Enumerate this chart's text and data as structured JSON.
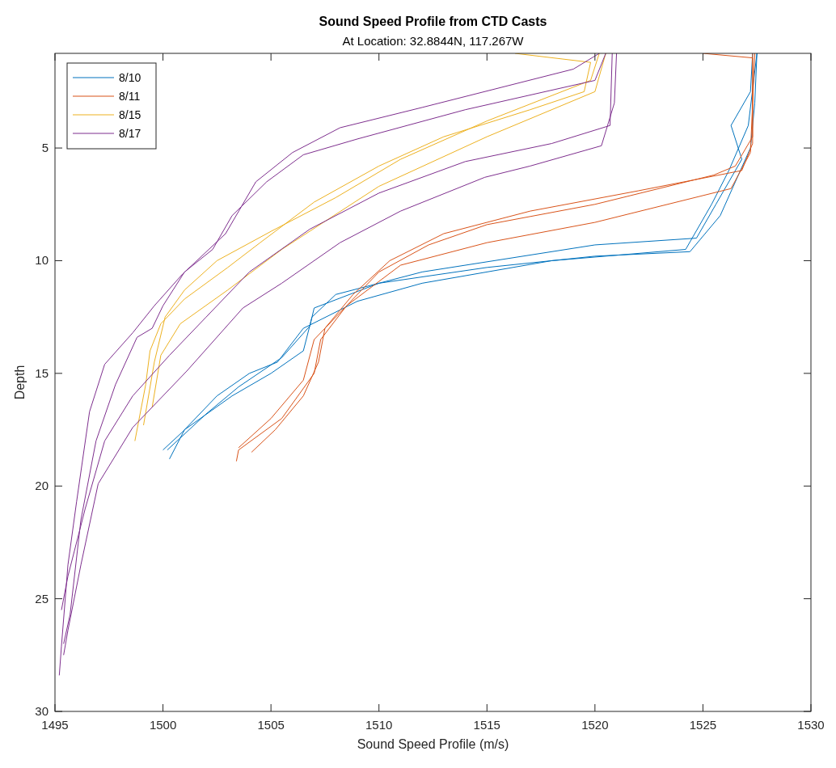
{
  "chart_data": {
    "type": "line",
    "title": "Sound Speed Profile from CTD Casts",
    "subtitle": "At Location: 32.8844N, 117.267W",
    "xlabel": "Sound Speed Profile (m/s)",
    "ylabel": "Depth",
    "xlim": [
      1495,
      1530
    ],
    "xticks": [
      1495,
      1500,
      1505,
      1510,
      1515,
      1520,
      1525,
      1530
    ],
    "ylim": [
      30,
      0.8
    ],
    "yticks": [
      5,
      10,
      15,
      20,
      25,
      30
    ],
    "grid": false,
    "legend": "top left",
    "line_style": "solid",
    "marker": "none",
    "series": [
      {
        "name": "8/10",
        "color": "#0072bd",
        "x": [
          1527.5,
          1527.4,
          1527.2,
          1526.5,
          1525.8,
          1524.4,
          1520,
          1515,
          1510,
          1507,
          1506.8,
          1505.5,
          1503.5,
          1502,
          1500.2
        ],
        "values": [
          0.8,
          3,
          5,
          6.5,
          8,
          9.6,
          9.8,
          10.3,
          11,
          12.1,
          12.9,
          14.3,
          15.6,
          16.8,
          18.4
        ]
      },
      {
        "color": "#0072bd",
        "x": [
          1527.3,
          1527.2,
          1526.3,
          1526.8,
          1525.6,
          1524.7,
          1520,
          1512,
          1508,
          1506.9,
          1506.5,
          1505,
          1503.2,
          1501,
          1500.3
        ],
        "values": [
          0.8,
          2.5,
          4,
          5.5,
          7.5,
          9,
          9.3,
          10.5,
          11.5,
          12.5,
          14,
          15,
          16,
          17.5,
          18.8
        ]
      },
      {
        "color": "#0072bd",
        "x": [
          1527.5,
          1527.1,
          1526.2,
          1525.4,
          1524.2,
          1518,
          1512,
          1509,
          1506.5,
          1505.3,
          1504,
          1502.5,
          1500.9,
          1500
        ],
        "values": [
          0.8,
          4,
          6,
          7.5,
          9.5,
          10,
          11,
          11.8,
          13,
          14.5,
          15,
          16,
          17.6,
          18.4
        ]
      },
      {
        "name": "8/11",
        "color": "#d95319",
        "x": [
          1525,
          1527.3,
          1527.3,
          1526.5,
          1525.5,
          1520,
          1515,
          1512.3,
          1510,
          1508.5,
          1507.3,
          1507,
          1505.5,
          1503.5,
          1503.4
        ],
        "values": [
          0.8,
          1,
          4.5,
          5.8,
          6.2,
          7.5,
          8.4,
          9.3,
          10.5,
          12,
          13.5,
          15,
          17,
          18.4,
          18.9
        ]
      },
      {
        "color": "#d95319",
        "x": [
          1527.3,
          1527.3,
          1526.8,
          1522,
          1517,
          1513,
          1510.5,
          1508.8,
          1507.5,
          1507.2,
          1506.5,
          1505.2,
          1504.1
        ],
        "values": [
          0.8,
          4.8,
          6,
          6.9,
          7.8,
          8.8,
          10,
          11.5,
          13,
          14.5,
          16,
          17.5,
          18.5
        ]
      },
      {
        "color": "#d95319",
        "x": [
          1527.4,
          1527.2,
          1526.3,
          1520,
          1515,
          1511,
          1508.5,
          1507,
          1506.5,
          1505,
          1503.5
        ],
        "values": [
          0.8,
          5.2,
          6.8,
          8.3,
          9.2,
          10.2,
          12,
          13.5,
          15.3,
          17,
          18.3
        ]
      },
      {
        "name": "8/15",
        "color": "#edb120",
        "x": [
          1516.3,
          1519.8,
          1519.5,
          1517,
          1513,
          1510,
          1507,
          1504.5,
          1503,
          1501,
          1499.9,
          1499.4,
          1499.2,
          1498.7
        ],
        "values": [
          0.8,
          1.2,
          2.5,
          3.3,
          4.5,
          5.8,
          7.4,
          9.2,
          10.3,
          11.7,
          12.8,
          14,
          15.5,
          18
        ]
      },
      {
        "color": "#edb120",
        "x": [
          1520.2,
          1519.8,
          1515,
          1511,
          1508,
          1505,
          1502.5,
          1501,
          1500.1,
          1499.6,
          1499.1
        ],
        "values": [
          0.8,
          2,
          3.8,
          5.5,
          7.2,
          8.7,
          10,
          11.3,
          12.5,
          14.5,
          17.3
        ]
      },
      {
        "color": "#edb120",
        "x": [
          1520.5,
          1520,
          1515,
          1510,
          1505.5,
          1503,
          1500.8,
          1499.9,
          1499.5
        ],
        "values": [
          0.8,
          2.5,
          4.5,
          6.7,
          9.5,
          11.3,
          12.8,
          14.2,
          16.5
        ]
      },
      {
        "name": "8/17",
        "color": "#7e2f8e",
        "x": [
          1520.2,
          1519,
          1512,
          1508.2,
          1506,
          1504.3,
          1502.9,
          1500.9,
          1499.6,
          1498.6,
          1497.3,
          1496.6,
          1496,
          1495.6,
          1495.3,
          1495.2
        ],
        "values": [
          0.8,
          1.5,
          3.2,
          4.1,
          5.2,
          6.5,
          8.8,
          10.6,
          12,
          13.2,
          14.6,
          16.7,
          20.7,
          23.5,
          27.1,
          28.4
        ]
      },
      {
        "color": "#7e2f8e",
        "x": [
          1520.5,
          1520,
          1514,
          1509,
          1506.5,
          1504.8,
          1503.2,
          1502.3,
          1501,
          1500,
          1499.5,
          1498.8,
          1497.8,
          1496.9,
          1496.2,
          1495.7,
          1495.4
        ],
        "values": [
          0.8,
          2,
          3.3,
          4.6,
          5.3,
          6.5,
          8,
          9.5,
          10.5,
          12,
          13,
          13.4,
          15.5,
          18,
          21.5,
          25.7,
          27
        ]
      },
      {
        "color": "#7e2f8e",
        "x": [
          1521,
          1520.9,
          1520.3,
          1517,
          1514.9,
          1511,
          1508.2,
          1505.5,
          1503.7,
          1501.1,
          1498.6,
          1497,
          1496.2,
          1495.6,
          1495.4
        ],
        "values": [
          0.8,
          3,
          4.9,
          5.8,
          6.3,
          7.8,
          9.2,
          11,
          12.1,
          14.9,
          17.4,
          19.9,
          23.5,
          26.4,
          27.5
        ]
      },
      {
        "color": "#7e2f8e",
        "x": [
          1520.8,
          1520.7,
          1518,
          1514,
          1510,
          1506.8,
          1504,
          1502,
          1500.3,
          1498.6,
          1497.3,
          1496.4,
          1495.6,
          1495.3
        ],
        "values": [
          0.8,
          4,
          4.8,
          5.6,
          7,
          8.6,
          10.5,
          12.5,
          14.2,
          16,
          18,
          21,
          24,
          25.5
        ]
      }
    ]
  }
}
